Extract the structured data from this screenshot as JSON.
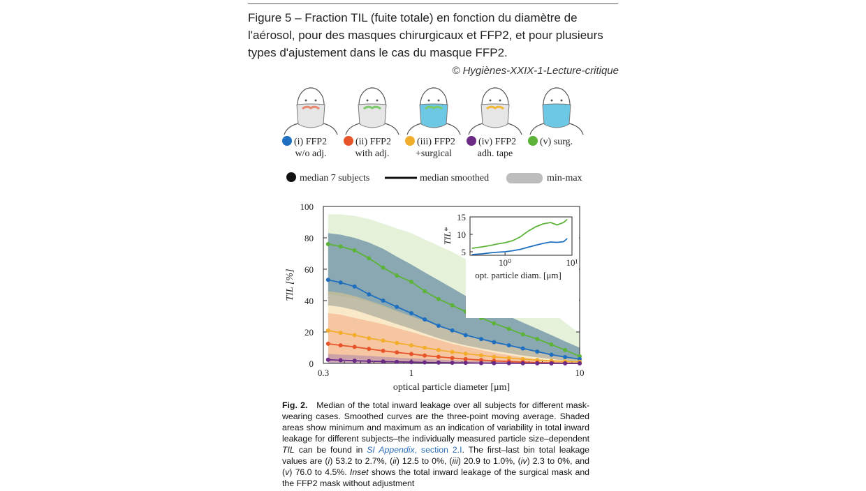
{
  "header": {
    "title": "Figure 5 – Fraction TIL (fuite totale) en fonction du diamètre de l'aérosol, pour des masques chirurgicaux et FFP2, et pour plusieurs types d'ajustement dans le cas du masque FFP2.",
    "copyright": "© Hygiènes-XXIX-1-Lecture-critique"
  },
  "masks": [
    {
      "line1": "(i) FFP2",
      "line2": "w/o adj.",
      "color": "#1f6fc0",
      "mask_color": "#e6e6e6",
      "strap_color": "#e6e6e6"
    },
    {
      "line1": "(ii) FFP2",
      "line2": "with adj.",
      "color": "#e8542a",
      "mask_color": "#e6e6e6",
      "strap_color": "#7bc96a"
    },
    {
      "line1": "(iii) FFP2",
      "line2": "+surgical",
      "color": "#f2ad2c",
      "mask_color": "#6dc8e6",
      "strap_color": "#7bc96a"
    },
    {
      "line1": "(iv) FFP2",
      "line2": "adh. tape",
      "color": "#6a2a86",
      "mask_color": "#e6e6e6",
      "strap_color": "#f0b93a"
    },
    {
      "line1": "(v) surg.",
      "line2": "",
      "color": "#5cb338",
      "mask_color": "#6dc8e6",
      "strap_color": "#6dc8e6"
    }
  ],
  "legend_types": {
    "median": "median 7 subjects",
    "smoothed": "median smoothed",
    "minmax": "min-max"
  },
  "chart_data": [
    {
      "type": "line",
      "title": "",
      "xlabel": "optical particle diameter [μm]",
      "ylabel": "TIL [%]",
      "xscale": "log",
      "xlim": [
        0.3,
        10
      ],
      "ylim": [
        0,
        100
      ],
      "yticks": [
        0,
        20,
        40,
        60,
        80,
        100
      ],
      "xtick_labels": [
        "0.3",
        "1",
        "10"
      ],
      "x": [
        0.32,
        0.38,
        0.46,
        0.56,
        0.68,
        0.82,
        1.0,
        1.2,
        1.45,
        1.75,
        2.1,
        2.6,
        3.1,
        3.8,
        4.6,
        5.6,
        6.8,
        8.2,
        10.0
      ],
      "series": [
        {
          "name": "(i) FFP2 w/o adj.",
          "color": "#1f6fc0",
          "band": "#1a4f80",
          "values": [
            53.2,
            51.5,
            49,
            44,
            40,
            36,
            32,
            28,
            24,
            21,
            18,
            15.5,
            13.5,
            11.5,
            9.5,
            7.5,
            5.5,
            4.0,
            2.7
          ],
          "min": [
            37,
            36,
            34,
            31,
            28,
            25,
            22,
            19,
            16,
            13.5,
            11.5,
            9.5,
            8,
            6.5,
            5,
            3.8,
            2.8,
            1.8,
            1
          ],
          "max": [
            83,
            82,
            80,
            77,
            73,
            68,
            63,
            58,
            53,
            48,
            43,
            38.5,
            34,
            30,
            26,
            22,
            18,
            14,
            10
          ]
        },
        {
          "name": "(ii) FFP2 with adj.",
          "color": "#e8542a",
          "band": "#f29a72",
          "values": [
            12.5,
            11.5,
            10.5,
            9.2,
            8.0,
            7.0,
            6.0,
            5.0,
            4.2,
            3.4,
            2.7,
            2.1,
            1.6,
            1.2,
            0.8,
            0.5,
            0.3,
            0.1,
            0
          ],
          "min": [
            0.5,
            0.5,
            0.4,
            0.4,
            0.3,
            0.3,
            0.2,
            0.2,
            0.1,
            0.1,
            0.1,
            0,
            0,
            0,
            0,
            0,
            0,
            0,
            0
          ],
          "max": [
            32,
            31,
            29,
            27,
            25,
            22.5,
            20,
            17.5,
            15,
            12.5,
            10.5,
            8.5,
            6.8,
            5.2,
            3.8,
            2.6,
            1.8,
            1.1,
            0.6
          ]
        },
        {
          "name": "(iii) FFP2 +surgical",
          "color": "#f2ad2c",
          "band": "#f5cf86",
          "values": [
            20.9,
            19.5,
            18,
            16,
            14.5,
            13,
            11.5,
            10,
            8.5,
            7.3,
            6.2,
            5.1,
            4.2,
            3.4,
            2.7,
            2.1,
            1.6,
            1.3,
            1.0
          ],
          "min": [
            3,
            2.8,
            2.6,
            2.3,
            2,
            1.8,
            1.5,
            1.3,
            1.1,
            0.9,
            0.7,
            0.6,
            0.5,
            0.4,
            0.3,
            0.2,
            0.2,
            0.1,
            0.1
          ],
          "max": [
            46,
            45,
            43,
            40,
            37,
            33.5,
            30,
            27,
            24,
            21,
            18,
            15.5,
            13,
            11,
            9,
            7.2,
            5.6,
            4.2,
            3
          ]
        },
        {
          "name": "(iv) FFP2 adh. tape",
          "color": "#6a2a86",
          "band": "#9b78b0",
          "values": [
            2.3,
            2.0,
            1.7,
            1.4,
            1.2,
            1.0,
            0.8,
            0.6,
            0.5,
            0.4,
            0.3,
            0.2,
            0.1,
            0.1,
            0.05,
            0,
            0,
            0,
            0
          ],
          "min": [
            0.2,
            0.2,
            0.2,
            0.1,
            0.1,
            0.1,
            0.1,
            0,
            0,
            0,
            0,
            0,
            0,
            0,
            0,
            0,
            0,
            0,
            0
          ],
          "max": [
            6,
            5.6,
            5.2,
            4.7,
            4.2,
            3.7,
            3.2,
            2.8,
            2.4,
            2,
            1.7,
            1.4,
            1.1,
            0.9,
            0.7,
            0.5,
            0.4,
            0.3,
            0.2
          ]
        },
        {
          "name": "(v) surg.",
          "color": "#5cb338",
          "band": "#c7e0ac",
          "values": [
            76.0,
            74.5,
            72,
            67,
            61,
            56,
            52,
            46,
            41,
            37,
            33,
            29,
            25.5,
            22,
            18.5,
            15.5,
            12,
            8.5,
            4.5
          ],
          "min": [
            44,
            43,
            41.5,
            39,
            36,
            33,
            30,
            27,
            24,
            21,
            18.5,
            16,
            13.5,
            11.5,
            9.5,
            7.5,
            5.8,
            4.2,
            3
          ],
          "max": [
            95,
            95,
            94,
            92,
            89,
            86,
            83,
            79,
            75,
            71,
            66.5,
            62,
            57,
            52,
            46,
            40,
            33,
            26,
            19
          ]
        }
      ]
    },
    {
      "type": "line",
      "title": "",
      "xlabel": "opt. particle diam. [μm]",
      "ylabel": "TIL*",
      "xscale": "log",
      "xlim": [
        0.3,
        10
      ],
      "ylim": [
        4,
        15
      ],
      "yticks": [
        5,
        10,
        15
      ],
      "xtick_labels": [
        "10⁰",
        "10¹"
      ],
      "x": [
        0.32,
        0.45,
        0.6,
        0.8,
        1.0,
        1.3,
        1.7,
        2.2,
        2.9,
        3.7,
        4.8,
        6.0,
        7.5,
        8.5
      ],
      "series": [
        {
          "name": "(i) FFP2 w/o adj.",
          "color": "#1f6fc0",
          "values": [
            4.2,
            4.4,
            4.7,
            4.9,
            5.0,
            5.3,
            5.7,
            6.3,
            6.9,
            7.4,
            7.8,
            7.7,
            7.9,
            8.8
          ]
        },
        {
          "name": "(v) surg.",
          "color": "#5cb338",
          "values": [
            6.0,
            6.4,
            6.8,
            7.3,
            7.6,
            8.2,
            9.3,
            10.9,
            12.2,
            13.0,
            13.4,
            12.7,
            13.4,
            14.3
          ]
        }
      ]
    }
  ],
  "caption": {
    "label": "Fig. 2.",
    "text_1": "Median of the total inward leakage over all subjects for different mask-wearing cases. Smoothed curves are the three-point moving average. Shaded areas show minimum and maximum as an indication of variability in total inward leakage for different subjects–the individually measured particle size–dependent ",
    "til": "TIL",
    "text_2": " can be found in ",
    "link": "SI Appendix",
    "link_2": ", section 2.I",
    "text_3": ". The first–last bin total leakage values are (",
    "i": "i",
    "text_4": ") 53.2 to 2.7%, (",
    "ii": "ii",
    "text_5": ") 12.5 to 0%, (",
    "iii": "iii",
    "text_6": ") 20.9 to 1.0%, (",
    "iv": "iv",
    "text_7": ") 2.3 to 0%, and (",
    "v": "v",
    "text_8": ") 76.0 to 4.5%. ",
    "inset": "Inset",
    "text_9": " shows the total inward leakage of the surgical mask and the FFP2 mask without adjustment"
  }
}
